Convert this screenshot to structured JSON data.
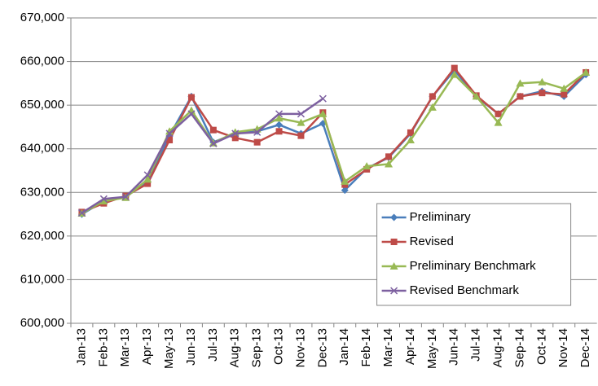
{
  "chart_data": {
    "type": "line",
    "categories": [
      "Jan-13",
      "Feb-13",
      "Mar-13",
      "Apr-13",
      "May-13",
      "Jun-13",
      "Jul-13",
      "Aug-13",
      "Sep-13",
      "Oct-13",
      "Nov-13",
      "Dec-13",
      "Jan-14",
      "Feb-14",
      "Mar-14",
      "Apr-14",
      "May-14",
      "Jun-14",
      "Jul-14",
      "Aug-14",
      "Sep-14",
      "Oct-14",
      "Nov-14",
      "Dec-14"
    ],
    "series": [
      {
        "name": "Preliminary",
        "color": "#4a7ebb",
        "marker": "diamond",
        "values": [
          625000,
          628000,
          629000,
          632500,
          643000,
          652000,
          641500,
          643500,
          644000,
          645500,
          643500,
          645800,
          630500,
          635500,
          638000,
          643500,
          652000,
          658000,
          652000,
          648000,
          652000,
          653200,
          652000,
          657000
        ]
      },
      {
        "name": "Revised",
        "color": "#be4b48",
        "marker": "square",
        "values": [
          625500,
          627500,
          629200,
          632000,
          642000,
          651800,
          644300,
          642500,
          641500,
          644000,
          643000,
          648300,
          631800,
          635300,
          638200,
          643700,
          652000,
          658500,
          652200,
          648000,
          652000,
          652800,
          652500,
          657500
        ]
      },
      {
        "name": "Preliminary Benchmark",
        "color": "#98b954",
        "marker": "triangle",
        "values": [
          625200,
          628000,
          628800,
          633000,
          644000,
          648800,
          641300,
          643800,
          644500,
          647000,
          646000,
          648000,
          632500,
          636000,
          636500,
          642000,
          649500,
          657000,
          652000,
          646000,
          655000,
          655300,
          653800,
          657500
        ]
      },
      {
        "name": "Revised Benchmark",
        "color": "#7d60a0",
        "marker": "cross",
        "values": [
          625300,
          628500,
          629000,
          634000,
          643500,
          648000,
          641200,
          643500,
          643800,
          648000,
          648000,
          651500,
          null,
          null,
          null,
          null,
          null,
          null,
          null,
          null,
          null,
          null,
          null,
          null
        ]
      }
    ],
    "ylim": [
      600000,
      670000
    ],
    "yticks": [
      {
        "value": 600000,
        "label": "600,000"
      },
      {
        "value": 610000,
        "label": "610,000"
      },
      {
        "value": 620000,
        "label": "620,000"
      },
      {
        "value": 630000,
        "label": "630,000"
      },
      {
        "value": 640000,
        "label": "640,000"
      },
      {
        "value": 650000,
        "label": "650,000"
      },
      {
        "value": 660000,
        "label": "660,000"
      },
      {
        "value": 670000,
        "label": "670,000"
      }
    ],
    "grid": true,
    "legend_position": "right"
  }
}
